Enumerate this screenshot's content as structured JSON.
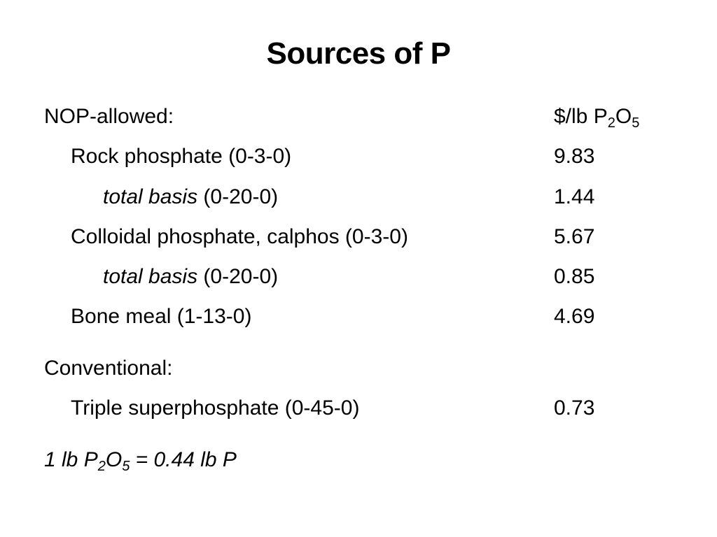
{
  "title": "Sources of P",
  "nop": {
    "heading": "NOP-allowed:",
    "unit_prefix": "$/lb P",
    "unit_sub1": "2",
    "unit_mid": "O",
    "unit_sub2": "5",
    "rows": [
      {
        "name": "Rock phosphate (0-3-0)",
        "value": "9.83"
      },
      {
        "italic": "total basis",
        "rest": " (0-20-0)",
        "value": "1.44"
      },
      {
        "name": "Colloidal phosphate, calphos (0-3-0)",
        "value": "5.67"
      },
      {
        "italic": "total basis",
        "rest": " (0-20-0)",
        "value": "0.85"
      },
      {
        "name": "Bone meal (1-13-0)",
        "value": "4.69"
      }
    ]
  },
  "conventional": {
    "heading": "Conventional:",
    "rows": [
      {
        "name": "Triple superphosphate (0-45-0)",
        "value": "0.73"
      }
    ]
  },
  "footnote": {
    "part1": "1 lb P",
    "sub1": "2",
    "part2": "O",
    "sub2": "5",
    "part3": " = 0.44 lb P"
  }
}
